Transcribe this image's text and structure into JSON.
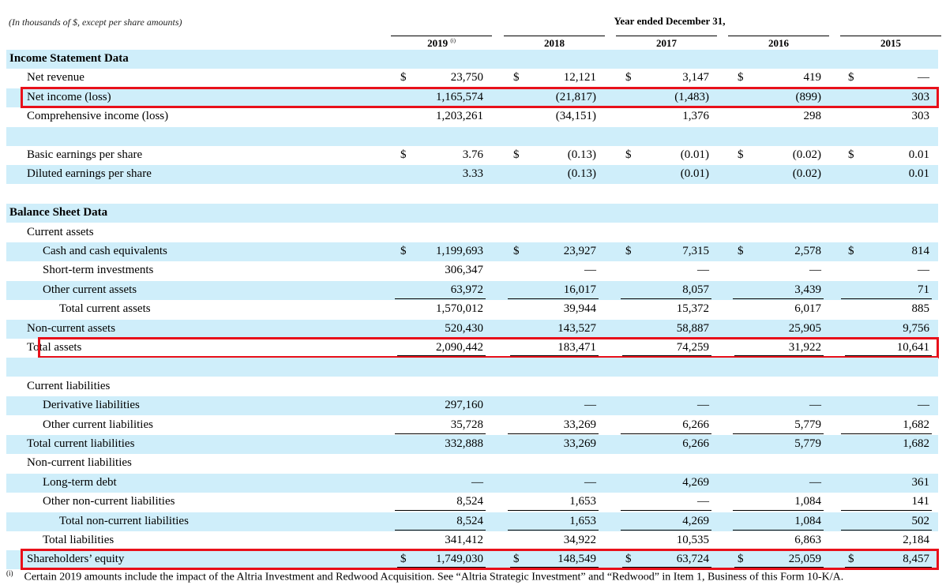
{
  "caption": "(In thousands of $, except per share amounts)",
  "year_ended": "Year ended December 31,",
  "years": [
    "2019",
    "2018",
    "2017",
    "2016",
    "2015"
  ],
  "year_note_mark": "(i)",
  "rows": [
    {
      "label": "Income Statement Data",
      "bold": true,
      "indent": 0,
      "shade": true
    },
    {
      "label": "Net revenue",
      "indent": 1,
      "dollar": true,
      "values": [
        "23,750",
        "12,121",
        "3,147",
        "419",
        "—"
      ]
    },
    {
      "label": "Net income (loss)",
      "indent": 1,
      "shade": true,
      "highlight": true,
      "values": [
        "1,165,574",
        "(21,817)",
        "(1,483)",
        "(899)",
        "303"
      ]
    },
    {
      "label": "Comprehensive income (loss)",
      "indent": 1,
      "values": [
        "1,203,261",
        "(34,151)",
        "1,376",
        "298",
        "303"
      ]
    },
    {
      "label": "",
      "indent": 0,
      "shade": true
    },
    {
      "label": "Basic earnings per share",
      "indent": 1,
      "dollar": true,
      "values": [
        "3.76",
        "(0.13)",
        "(0.01)",
        "(0.02)",
        "0.01"
      ]
    },
    {
      "label": "Diluted earnings per share",
      "indent": 1,
      "shade": true,
      "values": [
        "3.33",
        "(0.13)",
        "(0.01)",
        "(0.02)",
        "0.01"
      ]
    },
    {
      "label": "",
      "indent": 0
    },
    {
      "label": "Balance Sheet Data",
      "bold": true,
      "indent": 0,
      "shade": true
    },
    {
      "label": "Current assets",
      "indent": 1
    },
    {
      "label": "Cash and cash equivalents",
      "indent": 2,
      "shade": true,
      "dollar": true,
      "values": [
        "1,199,693",
        "23,927",
        "7,315",
        "2,578",
        "814"
      ]
    },
    {
      "label": "Short-term investments",
      "indent": 2,
      "values": [
        "306,347",
        "—",
        "—",
        "—",
        "—"
      ]
    },
    {
      "label": "Other current assets",
      "indent": 2,
      "shade": true,
      "values": [
        "63,972",
        "16,017",
        "8,057",
        "3,439",
        "71"
      ],
      "underline": true
    },
    {
      "label": "Total current assets",
      "indent": 3,
      "values": [
        "1,570,012",
        "39,944",
        "15,372",
        "6,017",
        "885"
      ]
    },
    {
      "label": "Non-current assets",
      "indent": 1,
      "shade": true,
      "values": [
        "520,430",
        "143,527",
        "58,887",
        "25,905",
        "9,756"
      ],
      "underline": true
    },
    {
      "label": "Total assets",
      "indent": 1,
      "highlight": true,
      "values": [
        "2,090,442",
        "183,471",
        "74,259",
        "31,922",
        "10,641"
      ],
      "double": true
    },
    {
      "label": "",
      "indent": 0,
      "shade": true
    },
    {
      "label": "Current liabilities",
      "indent": 1
    },
    {
      "label": "Derivative liabilities",
      "indent": 2,
      "shade": true,
      "values": [
        "297,160",
        "—",
        "—",
        "—",
        "—"
      ]
    },
    {
      "label": "Other current liabilities",
      "indent": 2,
      "values": [
        "35,728",
        "33,269",
        "6,266",
        "5,779",
        "1,682"
      ],
      "underline": true
    },
    {
      "label": "Total current liabilities",
      "indent": 1,
      "shade": true,
      "values": [
        "332,888",
        "33,269",
        "6,266",
        "5,779",
        "1,682"
      ]
    },
    {
      "label": "Non-current liabilities",
      "indent": 1
    },
    {
      "label": "Long-term debt",
      "indent": 2,
      "shade": true,
      "values": [
        "—",
        "—",
        "4,269",
        "—",
        "361"
      ]
    },
    {
      "label": "Other non-current liabilities",
      "indent": 2,
      "values": [
        "8,524",
        "1,653",
        "—",
        "1,084",
        "141"
      ],
      "underline": true
    },
    {
      "label": "Total non-current liabilities",
      "indent": 3,
      "shade": true,
      "values": [
        "8,524",
        "1,653",
        "4,269",
        "1,084",
        "502"
      ],
      "underline": true
    },
    {
      "label": "Total liabilities",
      "indent": 2,
      "values": [
        "341,412",
        "34,922",
        "10,535",
        "6,863",
        "2,184"
      ],
      "underline": true
    },
    {
      "label": "Shareholders’ equity",
      "indent": 1,
      "shade": true,
      "highlight": true,
      "dollar": true,
      "values": [
        "1,749,030",
        "148,549",
        "63,724",
        "25,059",
        "8,457"
      ],
      "double": true
    }
  ],
  "currency_symbol": "$",
  "footnote": {
    "mark": "(i)",
    "text": "Certain 2019 amounts include the impact of the Altria Investment and Redwood Acquisition. See “Altria Strategic Investment” and “Redwood” in Item 1, Business of this Form 10-K/A."
  },
  "colors": {
    "shade": "#cfeefa",
    "highlight": "#e8101a"
  }
}
